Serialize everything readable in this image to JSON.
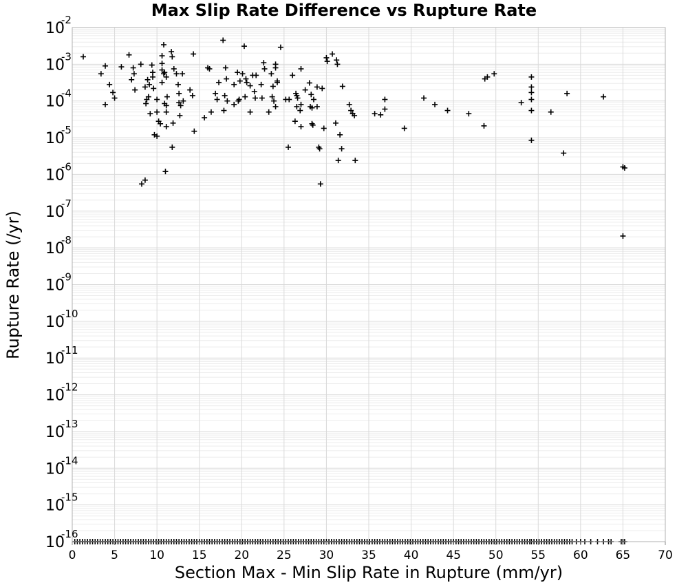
{
  "chart_data": {
    "type": "scatter",
    "title": "Max Slip Rate Difference vs Rupture Rate",
    "xlabel": "Section Max - Min Slip Rate in Rupture (mm/yr)",
    "ylabel": "Rupture Rate (/yr)",
    "xlim": [
      0,
      70
    ],
    "ylim": [
      1e-16,
      0.01
    ],
    "yscale": "log",
    "grid": true,
    "x_ticks": [
      "0",
      "5",
      "10",
      "15",
      "20",
      "25",
      "30",
      "35",
      "40",
      "45",
      "50",
      "55",
      "60",
      "65",
      "70"
    ],
    "y_ticks": [
      {
        "base": "10",
        "exp": "-2"
      },
      {
        "base": "10",
        "exp": "-3"
      },
      {
        "base": "10",
        "exp": "-4"
      },
      {
        "base": "10",
        "exp": "-5"
      },
      {
        "base": "10",
        "exp": "-6"
      },
      {
        "base": "10",
        "exp": "-7"
      },
      {
        "base": "10",
        "exp": "-8"
      },
      {
        "base": "10",
        "exp": "-9"
      },
      {
        "base": "10",
        "exp": "-10"
      },
      {
        "base": "10",
        "exp": "-11"
      },
      {
        "base": "10",
        "exp": "-12"
      },
      {
        "base": "10",
        "exp": "-13"
      },
      {
        "base": "10",
        "exp": "-14"
      },
      {
        "base": "10",
        "exp": "-15"
      },
      {
        "base": "10",
        "exp": "-16"
      }
    ],
    "marker": "plus",
    "marker_color": "#000000",
    "points": [
      [
        1.3,
        0.0016
      ],
      [
        3.4,
        0.00055
      ],
      [
        3.9,
        8e-05
      ],
      [
        3.9,
        0.0009
      ],
      [
        4.4,
        0.00028
      ],
      [
        4.8,
        0.00017
      ],
      [
        5.0,
        0.00012
      ],
      [
        5.8,
        0.00085
      ],
      [
        6.7,
        0.0018
      ],
      [
        7.0,
        0.00038
      ],
      [
        7.2,
        0.0008
      ],
      [
        7.3,
        0.00055
      ],
      [
        7.4,
        0.0002
      ],
      [
        8.1,
        0.001
      ],
      [
        8.2,
        5.5e-07
      ],
      [
        8.6,
        7e-07
      ],
      [
        8.6,
        0.00024
      ],
      [
        8.7,
        8.5e-05
      ],
      [
        8.8,
        0.00011
      ],
      [
        8.9,
        0.00038
      ],
      [
        9.0,
        0.00013
      ],
      [
        9.1,
        0.00028
      ],
      [
        9.2,
        4.5e-05
      ],
      [
        9.4,
        0.00095
      ],
      [
        9.5,
        0.0006
      ],
      [
        9.5,
        0.00045
      ],
      [
        9.6,
        0.00022
      ],
      [
        9.7,
        1.2e-05
      ],
      [
        10.0,
        1.1e-05
      ],
      [
        10.0,
        0.00011
      ],
      [
        10.0,
        5e-05
      ],
      [
        10.2,
        2.8e-05
      ],
      [
        10.4,
        2.4e-05
      ],
      [
        10.6,
        0.00105
      ],
      [
        10.6,
        0.0007
      ],
      [
        10.6,
        0.0017
      ],
      [
        10.6,
        0.00032
      ],
      [
        10.8,
        0.0034
      ],
      [
        10.8,
        0.00055
      ],
      [
        10.9,
        0.0006
      ],
      [
        10.9,
        8.5e-05
      ],
      [
        11.0,
        1.2e-06
      ],
      [
        11.1,
        2e-05
      ],
      [
        11.1,
        0.00045
      ],
      [
        11.1,
        5e-05
      ],
      [
        11.1,
        7.5e-05
      ],
      [
        11.2,
        0.00013
      ],
      [
        11.7,
        0.0022
      ],
      [
        11.8,
        0.0016
      ],
      [
        11.8,
        5.5e-06
      ],
      [
        11.9,
        2.5e-05
      ],
      [
        12.0,
        0.00075
      ],
      [
        12.3,
        0.00055
      ],
      [
        12.5,
        0.00028
      ],
      [
        12.6,
        9e-05
      ],
      [
        12.6,
        0.00016
      ],
      [
        12.7,
        4e-05
      ],
      [
        12.8,
        7.5e-05
      ],
      [
        13.0,
        0.00055
      ],
      [
        13.1,
        0.0001
      ],
      [
        13.9,
        0.0002
      ],
      [
        14.2,
        0.00014
      ],
      [
        14.3,
        0.0019
      ],
      [
        14.4,
        1.5e-05
      ],
      [
        15.6,
        3.5e-05
      ],
      [
        16.0,
        0.0008
      ],
      [
        16.2,
        0.00075
      ],
      [
        16.4,
        5e-05
      ],
      [
        16.9,
        0.00016
      ],
      [
        17.1,
        0.00011
      ],
      [
        17.3,
        0.00032
      ],
      [
        17.8,
        0.0045
      ],
      [
        17.9,
        5.5e-05
      ],
      [
        18.0,
        0.00014
      ],
      [
        18.1,
        0.0008
      ],
      [
        18.2,
        0.0004
      ],
      [
        18.3,
        0.0001
      ],
      [
        19.1,
        0.00028
      ],
      [
        19.1,
        8e-05
      ],
      [
        19.5,
        0.0006
      ],
      [
        19.6,
        0.0001
      ],
      [
        19.7,
        0.00011
      ],
      [
        19.8,
        0.00035
      ],
      [
        20.1,
        0.00055
      ],
      [
        20.3,
        0.0031
      ],
      [
        20.4,
        0.00013
      ],
      [
        20.5,
        0.0004
      ],
      [
        20.6,
        0.00032
      ],
      [
        21.0,
        0.00026
      ],
      [
        21.0,
        5e-05
      ],
      [
        21.3,
        0.0005
      ],
      [
        21.5,
        0.00018
      ],
      [
        21.6,
        0.00012
      ],
      [
        21.7,
        0.0005
      ],
      [
        22.3,
        0.00028
      ],
      [
        22.4,
        0.00012
      ],
      [
        22.6,
        0.0011
      ],
      [
        22.7,
        0.00075
      ],
      [
        23.2,
        5e-05
      ],
      [
        23.5,
        0.00055
      ],
      [
        23.6,
        0.00013
      ],
      [
        23.7,
        0.00025
      ],
      [
        23.8,
        0.0001
      ],
      [
        24.0,
        0.001
      ],
      [
        24.0,
        0.0008
      ],
      [
        24.0,
        7e-05
      ],
      [
        24.2,
        0.00032
      ],
      [
        24.2,
        0.00035
      ],
      [
        24.6,
        0.0029
      ],
      [
        25.2,
        0.00011
      ],
      [
        25.5,
        5.5e-06
      ],
      [
        25.6,
        0.00011
      ],
      [
        26.0,
        0.0005
      ],
      [
        26.3,
        2.8e-05
      ],
      [
        26.4,
        0.00016
      ],
      [
        26.5,
        0.00014
      ],
      [
        26.5,
        7e-05
      ],
      [
        26.6,
        0.00012
      ],
      [
        26.9,
        5.5e-05
      ],
      [
        27.0,
        8e-05
      ],
      [
        27.0,
        0.00075
      ],
      [
        27.0,
        2e-05
      ],
      [
        27.5,
        0.0002
      ],
      [
        28.0,
        0.00031
      ],
      [
        28.1,
        7e-05
      ],
      [
        28.2,
        0.00015
      ],
      [
        28.3,
        6.5e-05
      ],
      [
        28.3,
        2.4e-05
      ],
      [
        28.4,
        2.2e-05
      ],
      [
        28.5,
        0.00011
      ],
      [
        28.9,
        7e-05
      ],
      [
        28.9,
        0.00024
      ],
      [
        29.1,
        5.5e-06
      ],
      [
        29.2,
        5e-06
      ],
      [
        29.3,
        5.5e-07
      ],
      [
        29.5,
        0.00022
      ],
      [
        29.7,
        1.8e-05
      ],
      [
        30.0,
        0.0015
      ],
      [
        30.1,
        0.0012
      ],
      [
        30.7,
        0.0019
      ],
      [
        31.1,
        2.5e-05
      ],
      [
        31.2,
        0.0013
      ],
      [
        31.3,
        0.001
      ],
      [
        31.4,
        2.4e-06
      ],
      [
        31.6,
        1.2e-05
      ],
      [
        31.8,
        5e-06
      ],
      [
        31.9,
        0.00025
      ],
      [
        32.7,
        8e-05
      ],
      [
        32.9,
        5.5e-05
      ],
      [
        33.1,
        4.5e-05
      ],
      [
        33.3,
        4e-05
      ],
      [
        33.4,
        2.4e-06
      ],
      [
        35.7,
        4.5e-05
      ],
      [
        36.4,
        4.2e-05
      ],
      [
        36.9,
        0.00011
      ],
      [
        36.9,
        6e-05
      ],
      [
        39.2,
        1.8e-05
      ],
      [
        41.5,
        0.00012
      ],
      [
        42.8,
        8e-05
      ],
      [
        44.3,
        5.5e-05
      ],
      [
        46.8,
        4.5e-05
      ],
      [
        48.6,
        2.1e-05
      ],
      [
        48.7,
        0.0004
      ],
      [
        49.0,
        0.00045
      ],
      [
        49.8,
        0.00055
      ],
      [
        53.0,
        9e-05
      ],
      [
        54.2,
        0.00045
      ],
      [
        54.2,
        0.00024
      ],
      [
        54.2,
        0.00017
      ],
      [
        54.2,
        0.00011
      ],
      [
        54.2,
        5.5e-05
      ],
      [
        54.2,
        8.5e-06
      ],
      [
        56.5,
        5e-05
      ],
      [
        58.0,
        3.8e-06
      ],
      [
        58.4,
        0.00016
      ],
      [
        62.7,
        0.00013
      ],
      [
        65.0,
        1.6e-06
      ],
      [
        65.2,
        1.5e-06
      ],
      [
        65.0,
        2.1e-08
      ]
    ],
    "floor_points_y": 1e-16,
    "floor_points_x": [
      0.3,
      0.6,
      0.9,
      1.2,
      1.5,
      1.8,
      2.1,
      2.4,
      2.7,
      3.0,
      3.3,
      3.6,
      3.9,
      4.2,
      4.5,
      4.8,
      5.1,
      5.4,
      5.7,
      6.0,
      6.3,
      6.6,
      6.9,
      7.2,
      7.5,
      7.8,
      8.1,
      8.4,
      8.7,
      9.0,
      9.3,
      9.6,
      9.9,
      10.2,
      10.5,
      10.8,
      11.1,
      11.4,
      11.7,
      12.0,
      12.3,
      12.6,
      12.9,
      13.2,
      13.5,
      13.8,
      14.1,
      14.4,
      14.7,
      15.0,
      15.3,
      15.6,
      15.9,
      16.2,
      16.5,
      16.8,
      17.1,
      17.4,
      17.7,
      18.0,
      18.3,
      18.6,
      18.9,
      19.2,
      19.5,
      19.8,
      20.1,
      20.4,
      20.7,
      21.0,
      21.3,
      21.6,
      21.9,
      22.2,
      22.5,
      22.8,
      23.1,
      23.4,
      23.7,
      24.0,
      24.3,
      24.6,
      24.9,
      25.2,
      25.5,
      25.8,
      26.1,
      26.4,
      26.7,
      27.0,
      27.3,
      27.6,
      27.9,
      28.2,
      28.5,
      28.8,
      29.1,
      29.4,
      29.7,
      30.0,
      30.3,
      30.6,
      30.9,
      31.2,
      31.5,
      31.8,
      32.1,
      32.4,
      32.7,
      33.0,
      33.3,
      33.6,
      33.9,
      34.2,
      34.5,
      34.8,
      35.1,
      35.4,
      35.7,
      36.0,
      36.3,
      36.6,
      36.9,
      37.2,
      37.5,
      37.8,
      38.1,
      38.4,
      38.7,
      39.0,
      39.3,
      39.6,
      39.9,
      40.2,
      40.5,
      40.8,
      41.1,
      41.4,
      41.7,
      42.0,
      42.3,
      42.6,
      42.9,
      43.2,
      43.5,
      43.8,
      44.1,
      44.4,
      44.7,
      45.0,
      45.3,
      45.6,
      45.9,
      46.2,
      46.5,
      46.8,
      47.1,
      47.4,
      47.7,
      48.0,
      48.3,
      48.6,
      48.9,
      49.2,
      49.5,
      49.8,
      50.1,
      50.4,
      50.7,
      51.0,
      51.3,
      51.6,
      51.9,
      52.2,
      52.5,
      52.8,
      53.1,
      53.4,
      53.7,
      54.0,
      54.2,
      54.5,
      54.8,
      55.1,
      55.4,
      55.7,
      56.0,
      56.3,
      56.6,
      56.9,
      57.2,
      57.5,
      57.8,
      58.1,
      58.4,
      58.7,
      59.0,
      59.5,
      60.0,
      60.5,
      61.2,
      62.0,
      62.7,
      63.3,
      63.6,
      64.8,
      65.0,
      65.2
    ]
  }
}
